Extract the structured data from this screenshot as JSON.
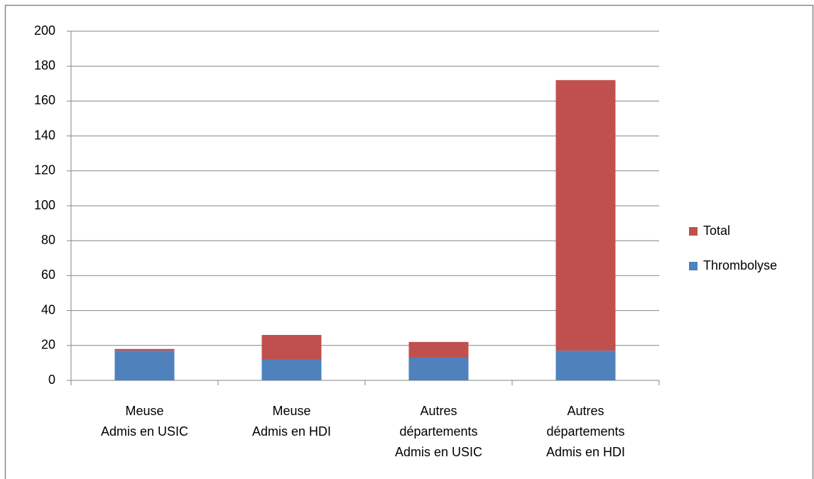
{
  "chart_data": {
    "type": "stacked_bar",
    "categories": [
      [
        "Meuse",
        "Admis en USIC"
      ],
      [
        "Meuse",
        "Admis en HDI"
      ],
      [
        "Autres",
        "départements",
        "Admis en USIC"
      ],
      [
        "Autres",
        "départements",
        "Admis en HDI"
      ]
    ],
    "series": [
      {
        "name": "Thrombolyse",
        "color": "#4f81bd",
        "values": [
          17,
          12,
          13,
          17
        ]
      },
      {
        "name": "Total",
        "color": "#c0504d",
        "values": [
          1,
          14,
          9,
          155
        ]
      }
    ],
    "ylim": [
      0,
      200
    ],
    "yticks": [
      0,
      20,
      40,
      60,
      80,
      100,
      120,
      140,
      160,
      180,
      200
    ],
    "grid": true,
    "legend": "right"
  }
}
